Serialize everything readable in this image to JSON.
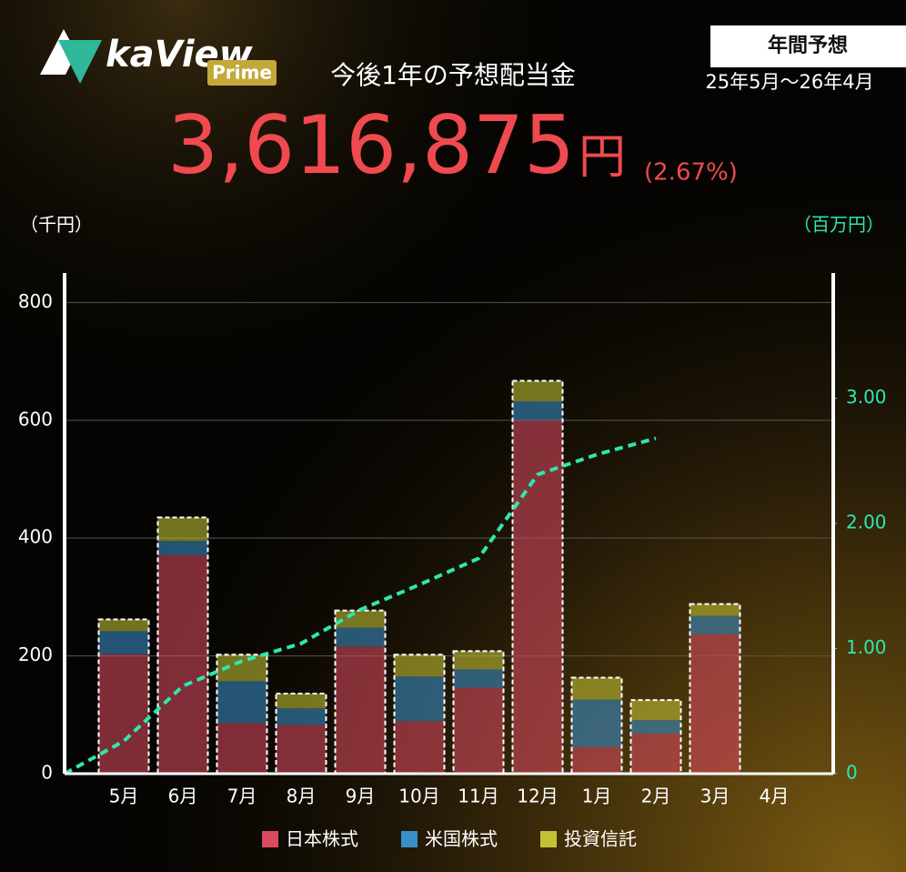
{
  "header": {
    "logo": "kaView",
    "logo_badge": "Prime",
    "badge": "年間予想",
    "period": "25年5月～26年4月",
    "title": "今後1年の予想配当金",
    "amount": "3,616,875",
    "amount_unit": "円",
    "yield": "(2.67%)"
  },
  "chart_data": {
    "type": "bar",
    "stacked": true,
    "y_label": "（千円）",
    "y2_label": "（百万円）",
    "categories": [
      null,
      "5月",
      "6月",
      "7月",
      "8月",
      "9月",
      "10月",
      "11月",
      "12月",
      "1月",
      "2月",
      "3月",
      "4月"
    ],
    "series": [
      {
        "name": "日本株式",
        "color": "#d84a5e",
        "values": [
          null,
          203,
          371,
          86,
          83,
          216,
          89,
          146,
          600,
          45,
          68,
          237,
          0
        ]
      },
      {
        "name": "米国株式",
        "color": "#3a8fc8",
        "values": [
          null,
          39,
          24,
          71,
          28,
          32,
          76,
          31,
          32,
          81,
          23,
          31,
          0
        ]
      },
      {
        "name": "投資信託",
        "color": "#c2c334",
        "values": [
          null,
          20,
          40,
          45,
          25,
          29,
          37,
          31,
          35,
          37,
          34,
          20,
          0
        ]
      },
      {
        "type": "line",
        "axis": "y2",
        "color": "#2de8b0",
        "values": [
          0,
          0.26,
          0.7,
          0.9,
          1.04,
          1.31,
          1.51,
          1.72,
          2.39,
          2.55,
          2.68,
          null,
          null
        ]
      }
    ],
    "ylim": [
      0,
      850
    ],
    "yticks": [
      0,
      200,
      400,
      600,
      800
    ],
    "y2lim": [
      0,
      4
    ],
    "y2ticks": [
      0,
      {
        "value": 1,
        "label": "1.00"
      },
      {
        "value": 2,
        "label": "2.00"
      },
      {
        "value": 3,
        "label": "3.00"
      }
    ],
    "grid": true,
    "legend": "bottom"
  }
}
